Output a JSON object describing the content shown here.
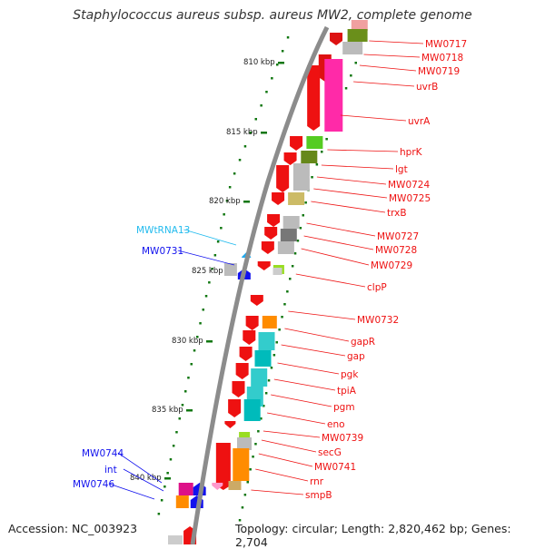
{
  "title": "Staphylococcus aureus subsp. aureus MW2, complete genome",
  "footer": {
    "accession": "Accession: NC_003923",
    "summary": "Topology: circular; Length: 2,820,462 bp; Genes: 2,704"
  },
  "colors": {
    "backbone": "#8c8c8c",
    "gene_forward": "#ee1111",
    "gene_reverse": "#1111ee",
    "trna": "#22bbee",
    "tick": "#117711"
  },
  "scale_labels": [
    "810 kbp",
    "815 kbp",
    "820 kbp",
    "825 kbp",
    "830 kbp",
    "835 kbp",
    "840 kbp"
  ],
  "forward_genes": [
    "MW0717",
    "MW0718",
    "MW0719",
    "uvrB",
    "uvrA",
    "hprK",
    "lgt",
    "MW0724",
    "MW0725",
    "trxB",
    "MW0727",
    "MW0728",
    "MW0729",
    "clpP",
    "MW0732",
    "gapR",
    "gap",
    "pgk",
    "tpiA",
    "pgm",
    "eno",
    "MW0739",
    "secG",
    "MW0741",
    "rnr",
    "smpB"
  ],
  "reverse_genes": [
    "MWtRNA13",
    "MW0731",
    "MW0744",
    "int",
    "MW0746"
  ]
}
